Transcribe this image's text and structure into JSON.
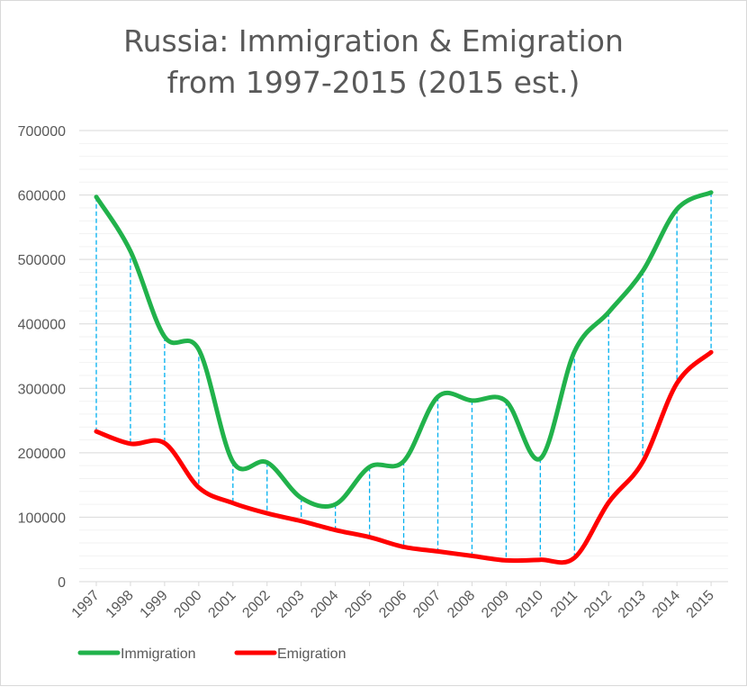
{
  "chart_data": {
    "type": "line",
    "title": "Russia: Immigration & Emigration",
    "subtitle": "from 1997-2015 (2015 est.)",
    "x": [
      "1997",
      "1998",
      "1999",
      "2000",
      "2001",
      "2002",
      "2003",
      "2004",
      "2005",
      "2006",
      "2007",
      "2008",
      "2009",
      "2010",
      "2011",
      "2012",
      "2013",
      "2014",
      "2015"
    ],
    "series": [
      {
        "name": "Immigration",
        "color": "#21b24b",
        "values": [
          597000,
          513000,
          380000,
          360000,
          186000,
          185000,
          130000,
          120000,
          178000,
          187000,
          287000,
          281000,
          280000,
          191000,
          357000,
          418000,
          482000,
          578000,
          604000
        ]
      },
      {
        "name": "Emigration",
        "color": "#ff0000",
        "values": [
          233000,
          214000,
          215000,
          146000,
          122000,
          106000,
          94000,
          80000,
          69000,
          54000,
          47000,
          40000,
          33000,
          34000,
          37000,
          123000,
          186000,
          308000,
          356000
        ]
      }
    ],
    "ylim": [
      0,
      700000
    ],
    "yticks": [
      "0",
      "100000",
      "200000",
      "300000",
      "400000",
      "500000",
      "600000",
      "700000"
    ],
    "grid": true,
    "minor_grid": true,
    "drop_lines": true,
    "drop_line_color": "#00b0f0",
    "legend_position": "bottom-left"
  }
}
